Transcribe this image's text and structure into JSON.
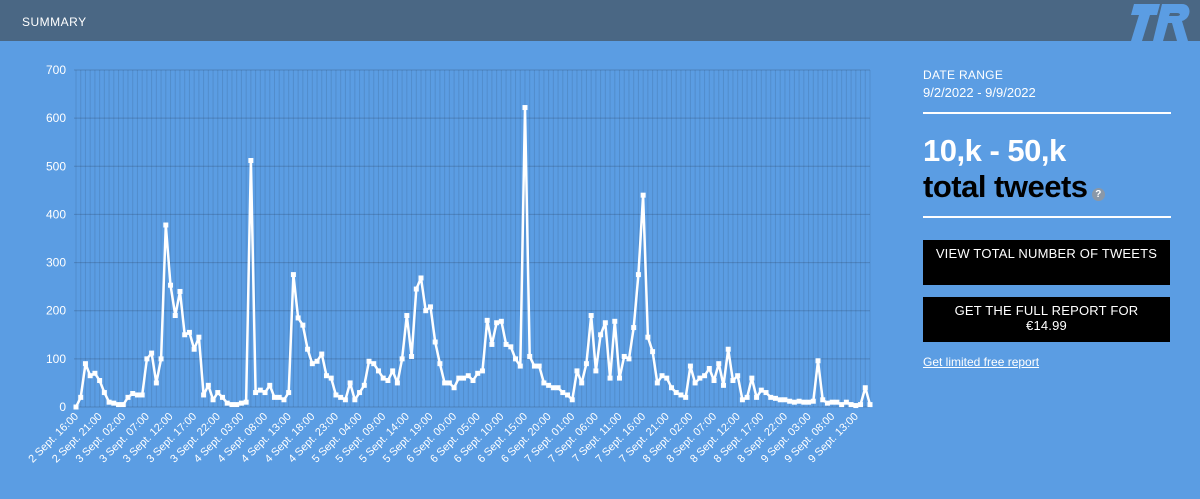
{
  "header": {
    "title": "SUMMARY",
    "logo_text": "TR"
  },
  "sidebar": {
    "date_range_label": "DATE RANGE",
    "date_range_value": "9/2/2022 - 9/9/2022",
    "tweet_range": "10,k - 50,k",
    "tweet_label": "total tweets",
    "help_icon": "?",
    "button_total": "VIEW TOTAL NUMBER OF TWEETS",
    "button_report": "GET THE FULL REPORT FOR €14.99",
    "free_report_link": "Get limited free report"
  },
  "colors": {
    "background": "#5b9de3",
    "topbar": "#4a6784",
    "line": "#ffffff",
    "button": "#000000"
  },
  "chart_data": {
    "type": "line",
    "title": "",
    "xlabel": "",
    "ylabel": "",
    "ylim": [
      0,
      700
    ],
    "yticks": [
      0,
      100,
      200,
      300,
      400,
      500,
      600,
      700
    ],
    "grid": true,
    "x_tick_labels": [
      "2 Sept. 16:00",
      "2 Sept. 21:00",
      "3 Sept. 02:00",
      "3 Sept. 07:00",
      "3 Sept. 12:00",
      "3 Sept. 17:00",
      "3 Sept. 22:00",
      "4 Sept. 03:00",
      "4 Sept. 08:00",
      "4 Sept. 13:00",
      "4 Sept. 18:00",
      "4 Sept. 23:00",
      "5 Sept. 04:00",
      "5 Sept. 09:00",
      "5 Sept. 14:00",
      "5 Sept. 19:00",
      "6 Sept. 00:00",
      "6 Sept. 05:00",
      "6 Sept. 10:00",
      "6 Sept. 15:00",
      "6 Sept. 20:00",
      "7 Sept. 01:00",
      "7 Sept. 06:00",
      "7 Sept. 11:00",
      "7 Sept. 16:00",
      "7 Sept. 21:00",
      "8 Sept. 02:00",
      "8 Sept. 07:00",
      "8 Sept. 12:00",
      "8 Sept. 17:00",
      "8 Sept. 22:00",
      "9 Sept. 03:00",
      "9 Sept. 08:00",
      "9 Sept. 13:00"
    ],
    "series": [
      {
        "values": [
          0,
          20,
          90,
          65,
          70,
          55,
          30,
          10,
          8,
          5,
          5,
          20,
          28,
          25,
          25,
          100,
          112,
          50,
          100,
          378,
          253,
          190,
          240,
          150,
          155,
          120,
          145,
          25,
          45,
          15,
          30,
          20,
          8,
          5,
          5,
          8,
          10,
          512,
          30,
          35,
          30,
          45,
          20,
          20,
          15,
          30,
          275,
          185,
          170,
          120,
          90,
          95,
          110,
          65,
          60,
          25,
          20,
          15,
          50,
          15,
          30,
          45,
          95,
          90,
          75,
          60,
          55,
          75,
          50,
          100,
          190,
          105,
          245,
          268,
          200,
          208,
          135,
          90,
          50,
          50,
          40,
          60,
          60,
          65,
          55,
          70,
          75,
          180,
          130,
          175,
          178,
          130,
          125,
          100,
          85,
          622,
          105,
          85,
          85,
          50,
          45,
          40,
          40,
          30,
          25,
          15,
          75,
          50,
          90,
          190,
          75,
          150,
          175,
          60,
          178,
          60,
          105,
          100,
          165,
          275,
          440,
          145,
          115,
          50,
          65,
          60,
          40,
          30,
          25,
          20,
          85,
          50,
          60,
          65,
          80,
          55,
          90,
          45,
          120,
          55,
          65,
          15,
          20,
          60,
          20,
          35,
          30,
          20,
          18,
          15,
          15,
          12,
          10,
          12,
          10,
          10,
          12,
          96,
          15,
          8,
          10,
          10,
          5,
          10,
          5,
          3,
          5,
          40,
          5
        ]
      }
    ]
  }
}
